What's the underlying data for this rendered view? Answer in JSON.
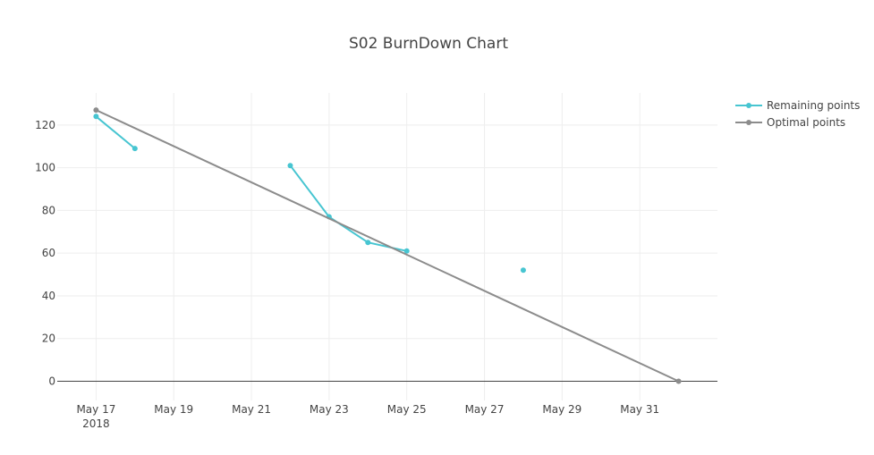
{
  "chart_data": {
    "type": "line",
    "title": "S02 BurnDown Chart",
    "x_axis": {
      "type": "date",
      "range": [
        "2018-05-16",
        "2018-06-02"
      ],
      "ticks": [
        {
          "date": "2018-05-17",
          "label": "May 17",
          "sublabel": "2018"
        },
        {
          "date": "2018-05-19",
          "label": "May 19"
        },
        {
          "date": "2018-05-21",
          "label": "May 21"
        },
        {
          "date": "2018-05-23",
          "label": "May 23"
        },
        {
          "date": "2018-05-25",
          "label": "May 25"
        },
        {
          "date": "2018-05-27",
          "label": "May 27"
        },
        {
          "date": "2018-05-29",
          "label": "May 29"
        },
        {
          "date": "2018-05-31",
          "label": "May 31"
        }
      ]
    },
    "y_axis": {
      "range": [
        -9,
        135
      ],
      "ticks": [
        0,
        20,
        40,
        60,
        80,
        100,
        120
      ]
    },
    "grid": true,
    "legend": {
      "placement": "top-right"
    },
    "series": [
      {
        "name": "Remaining points",
        "color": "#47c5d1",
        "mode": "lines+markers",
        "points": [
          {
            "x": "2018-05-17",
            "y": 124
          },
          {
            "x": "2018-05-18",
            "y": 109
          },
          {
            "x": "2018-05-19",
            "y": null
          },
          {
            "x": "2018-05-20",
            "y": null
          },
          {
            "x": "2018-05-21",
            "y": null
          },
          {
            "x": "2018-05-22",
            "y": 101
          },
          {
            "x": "2018-05-23",
            "y": 77
          },
          {
            "x": "2018-05-24",
            "y": 65
          },
          {
            "x": "2018-05-25",
            "y": 61
          },
          {
            "x": "2018-05-26",
            "y": null
          },
          {
            "x": "2018-05-27",
            "y": null
          },
          {
            "x": "2018-05-28",
            "y": 52
          }
        ]
      },
      {
        "name": "Optimal points",
        "color": "#8c8c8c",
        "mode": "lines+markers",
        "points": [
          {
            "x": "2018-05-17",
            "y": 127
          },
          {
            "x": "2018-06-01",
            "y": 0
          }
        ]
      }
    ]
  }
}
